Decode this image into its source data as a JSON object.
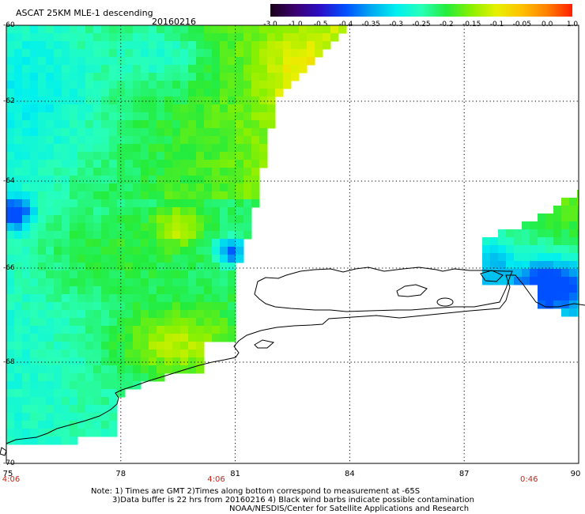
{
  "title": "ASCAT 25KM MLE-1 descending",
  "date": "20160216",
  "colorbar": {
    "labels": [
      "-3.0",
      "-1.0",
      "-0.5",
      "-0.4",
      "-0.35",
      "-0.3",
      "-0.25",
      "-0.2",
      "-0.15",
      "-0.1",
      "-0.05",
      "0.0",
      "1.0"
    ],
    "colors": [
      "#1a0018",
      "#3c0070",
      "#2a10c8",
      "#0050ff",
      "#00a8f0",
      "#00f0f0",
      "#28ffb8",
      "#24ec3c",
      "#8cf000",
      "#e8f000",
      "#ffc000",
      "#ff8000",
      "#ff1e00"
    ]
  },
  "map": {
    "lat_labels": [
      "-60",
      "-62",
      "-64",
      "-66",
      "-68",
      "-70"
    ],
    "lon_labels": [
      "75",
      "78",
      "81",
      "84",
      "87",
      "90"
    ],
    "times": [
      {
        "label": "4:06",
        "lon": 75
      },
      {
        "label": "4:06",
        "lon": 80.5
      },
      {
        "label": "0:46",
        "lon": 88.7
      }
    ]
  },
  "notes": {
    "line1": "Note: 1) Times are GMT 2)Times along bottom correspond to measurement at -65S",
    "line2": "3)Data buffer is 22 hrs from 20160216 4) Black wind barbs indicate possible contamination",
    "line3": "NOAA/NESDIS/Center for Satellite Applications and Research"
  }
}
